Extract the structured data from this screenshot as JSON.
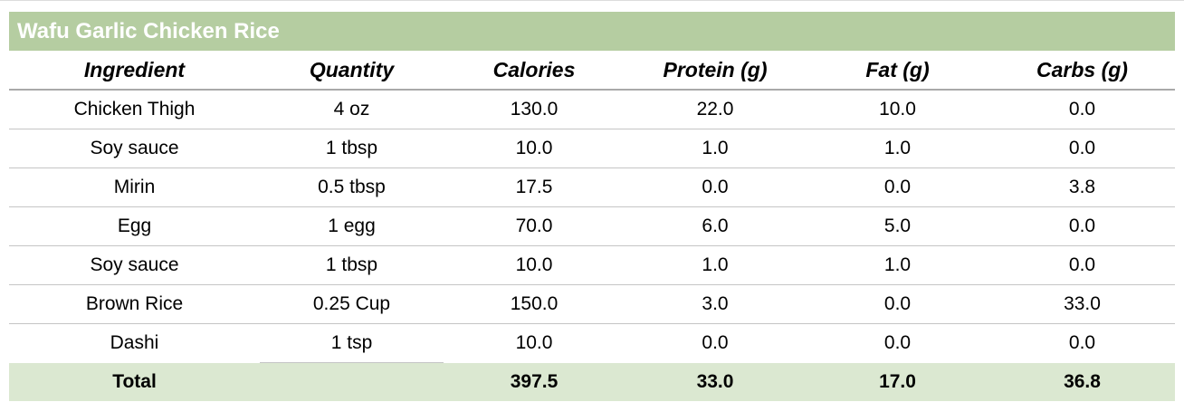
{
  "recipe": {
    "title": "Wafu Garlic Chicken Rice"
  },
  "table": {
    "columns": [
      "Ingredient",
      "Quantity",
      "Calories",
      "Protein (g)",
      "Fat (g)",
      "Carbs (g)"
    ],
    "rows": [
      [
        "Chicken Thigh",
        "4 oz",
        "130.0",
        "22.0",
        "10.0",
        "0.0"
      ],
      [
        "Soy sauce",
        "1 tbsp",
        "10.0",
        "1.0",
        "1.0",
        "0.0"
      ],
      [
        "Mirin",
        "0.5 tbsp",
        "17.5",
        "0.0",
        "0.0",
        "3.8"
      ],
      [
        "Egg",
        "1 egg",
        "70.0",
        "6.0",
        "5.0",
        "0.0"
      ],
      [
        "Soy sauce",
        "1 tbsp",
        "10.0",
        "1.0",
        "1.0",
        "0.0"
      ],
      [
        "Brown Rice",
        "0.25 Cup",
        "150.0",
        "3.0",
        "0.0",
        "33.0"
      ],
      [
        "Dashi",
        "1 tsp",
        "10.0",
        "0.0",
        "0.0",
        "0.0"
      ]
    ],
    "total_row": [
      "Total",
      "",
      "397.5",
      "33.0",
      "17.0",
      "36.8"
    ]
  },
  "colors": {
    "header_green": "#b5cda1",
    "total_green": "#dbe8d1",
    "row_border": "#c5c5c5",
    "header_border": "#a9a9a9"
  }
}
